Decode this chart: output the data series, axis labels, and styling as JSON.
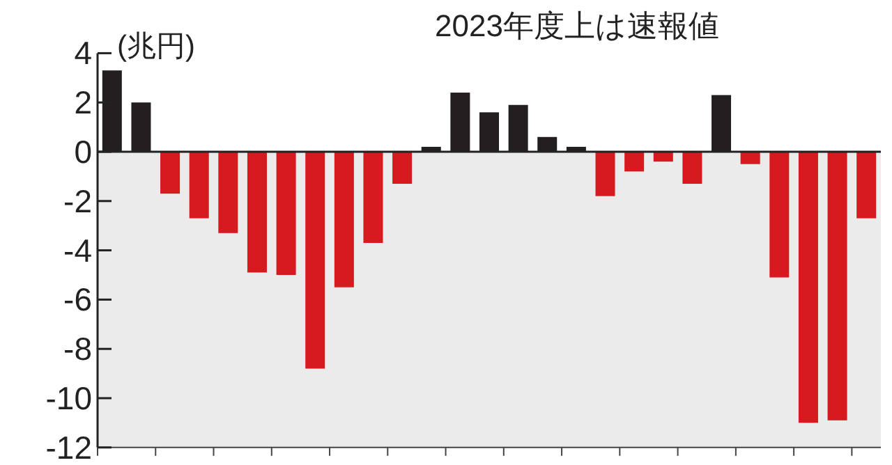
{
  "chart_data": {
    "type": "bar",
    "ylabel": "(兆円)",
    "annotations": [
      "2023年度上は速報値"
    ],
    "categories": [
      null,
      null,
      null,
      null,
      null,
      null,
      null,
      null,
      null,
      null,
      null,
      null,
      null,
      null,
      null,
      null,
      null,
      null,
      null,
      null,
      null,
      null,
      null,
      null,
      null,
      null,
      null
    ],
    "values": [
      3.3,
      2.0,
      -1.7,
      -2.7,
      -3.3,
      -4.9,
      -5.0,
      -8.8,
      -5.5,
      -3.7,
      -1.3,
      0.2,
      2.4,
      1.6,
      1.9,
      0.6,
      0.2,
      -1.8,
      -0.8,
      -0.4,
      -1.3,
      2.3,
      -0.5,
      -5.1,
      -11.0,
      -10.9,
      -2.7
    ],
    "colors": [
      "#231f20",
      "#231f20",
      "#d71920",
      "#d71920",
      "#d71920",
      "#d71920",
      "#d71920",
      "#d71920",
      "#d71920",
      "#d71920",
      "#d71920",
      "#231f20",
      "#231f20",
      "#231f20",
      "#231f20",
      "#231f20",
      "#231f20",
      "#d71920",
      "#d71920",
      "#d71920",
      "#d71920",
      "#231f20",
      "#d71920",
      "#d71920",
      "#d71920",
      "#d71920",
      "#d71920"
    ],
    "ylim": [
      -12,
      4
    ],
    "yticks": [
      4,
      2,
      0,
      -2,
      -4,
      -6,
      -8,
      -10,
      -12
    ],
    "bands": [
      {
        "axis": "y",
        "from": 0,
        "to": -12,
        "color": "#ebebeb"
      }
    ]
  }
}
